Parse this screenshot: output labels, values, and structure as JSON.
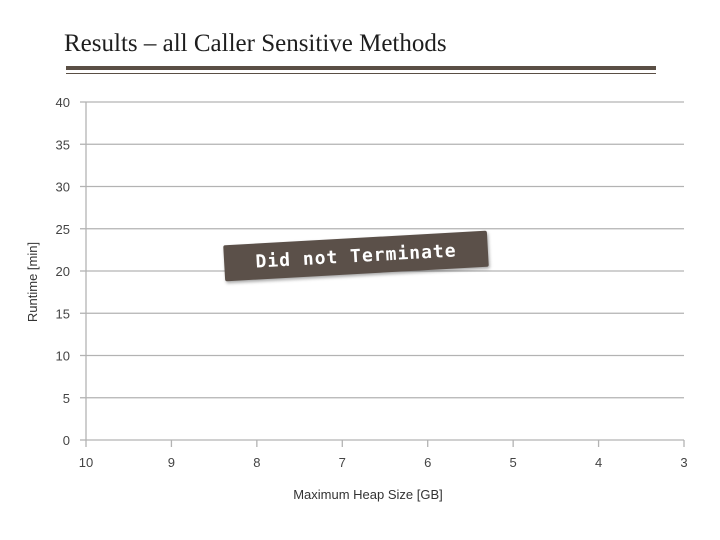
{
  "slide": {
    "title": "Results – all Caller Sensitive Methods"
  },
  "annotation": {
    "text": "Did not Terminate",
    "background_color": "#5b5049"
  },
  "colors": {
    "gridline": "#b3b3b3",
    "title_rule": "#5a4f45"
  },
  "chart_data": {
    "type": "line",
    "title": "",
    "xlabel": "Maximum Heap Size [GB]",
    "ylabel": "Runtime [min]",
    "categories": [
      "10",
      "9",
      "8",
      "7",
      "6",
      "5",
      "4",
      "3"
    ],
    "ylim": [
      0,
      40
    ],
    "ytick_step": 5,
    "yticks": [
      "0",
      "5",
      "10",
      "15",
      "20",
      "25",
      "30",
      "35",
      "40"
    ],
    "grid": true,
    "legend": "none",
    "series": []
  }
}
